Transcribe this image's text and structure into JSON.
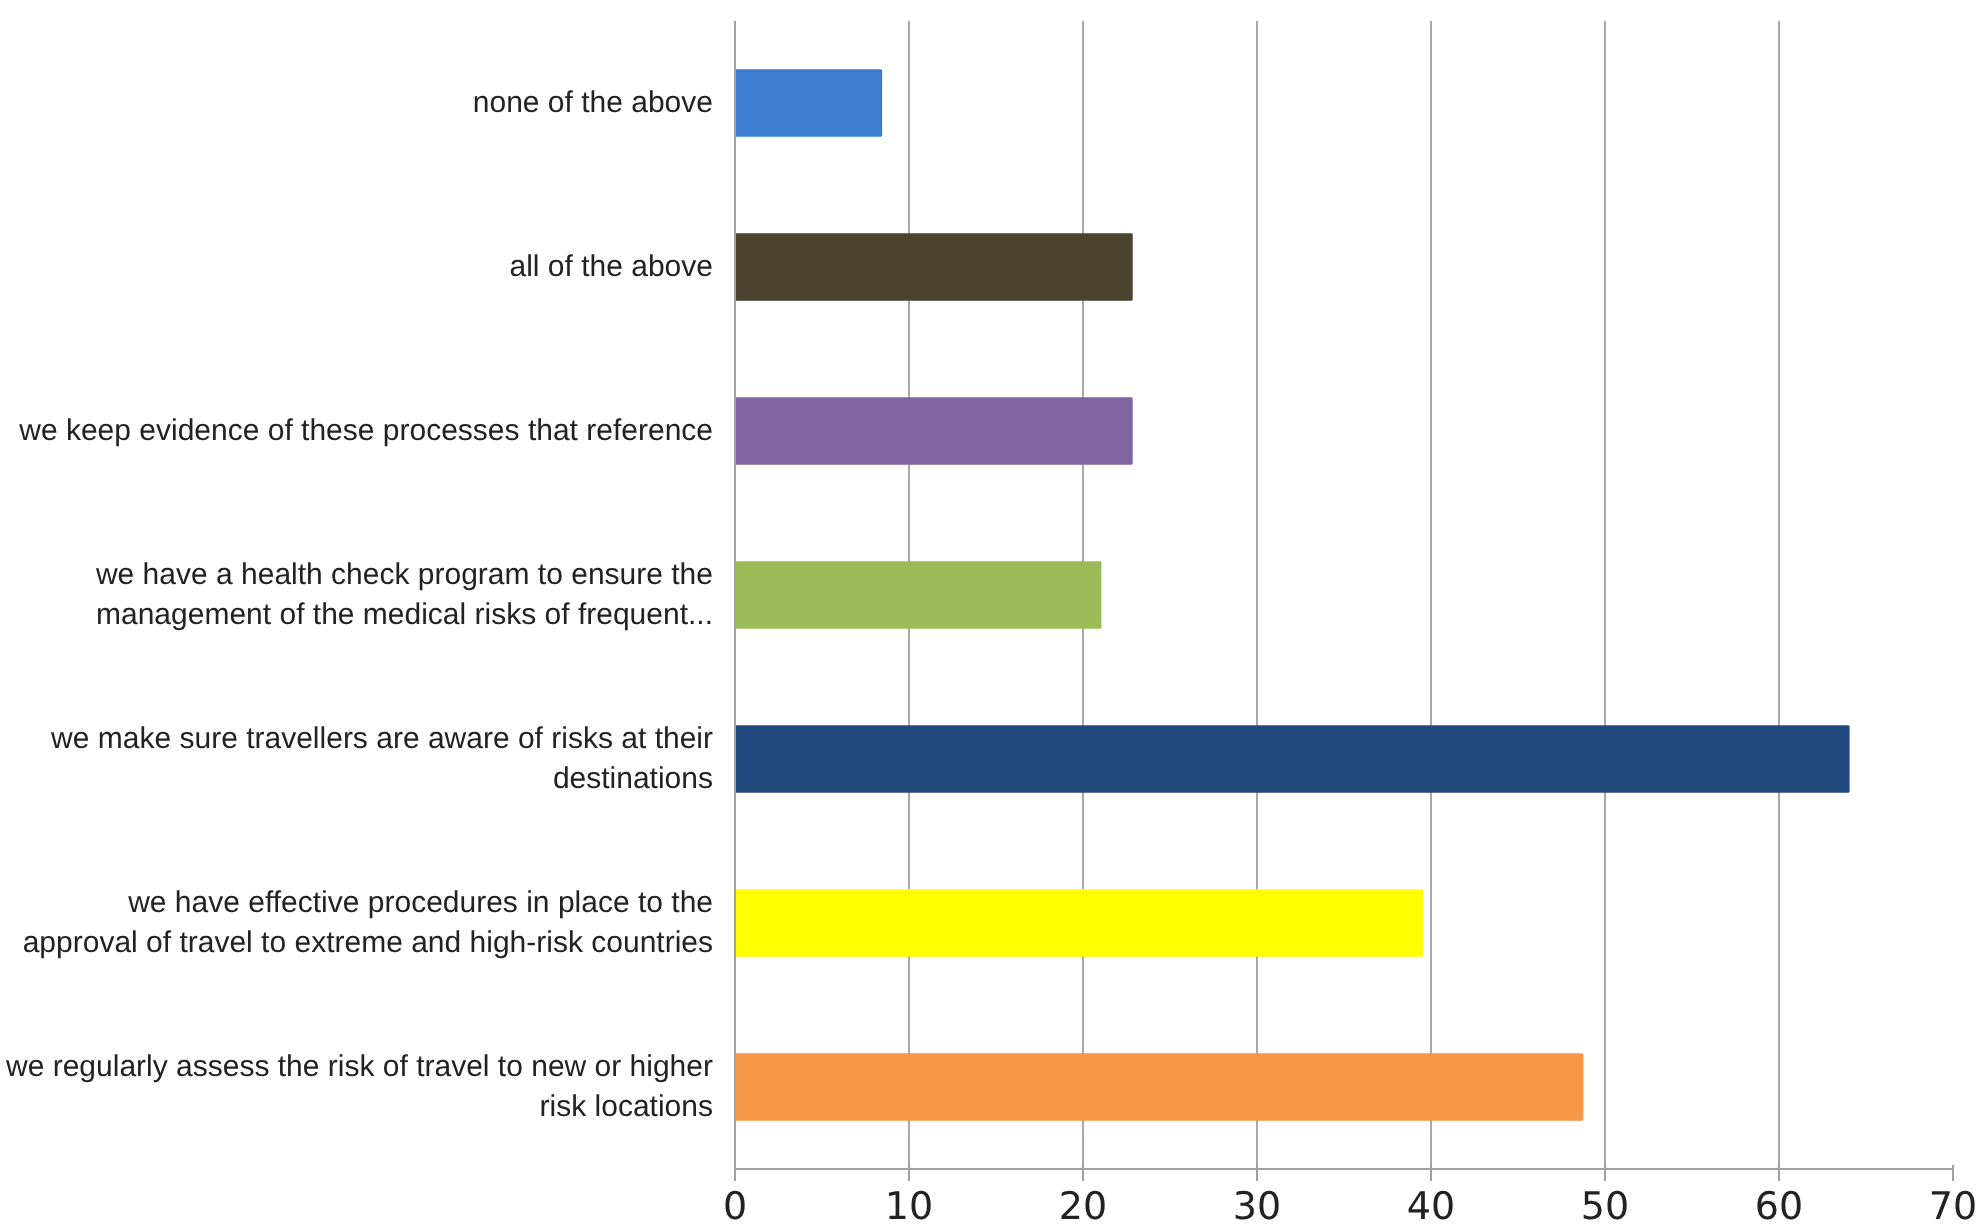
{
  "chart_data": {
    "type": "bar",
    "orientation": "horizontal",
    "categories": [
      "none of the above",
      "all of the above",
      "we keep evidence of these processes that reference",
      "we have a health check program to ensure the\nmanagement of the medical risks of frequent...",
      "we make sure travellers are aware of risks at their\ndestinations",
      "we have effective procedures in place to the\napproval of travel to extreme and high-risk countries",
      "we regularly assess the risk of travel to new or higher\nrisk locations"
    ],
    "values": [
      8.4,
      22.8,
      22.8,
      21,
      64,
      39.5,
      48.7
    ],
    "colors": [
      "#3c7dd0",
      "#4a4330",
      "#8064a2",
      "#9bbb59",
      "#1f497d",
      "#ffff00",
      "#f79646"
    ],
    "xlim": [
      0,
      70
    ],
    "xticks": [
      0,
      10,
      20,
      30,
      40,
      50,
      60,
      70
    ],
    "grid": "x"
  }
}
